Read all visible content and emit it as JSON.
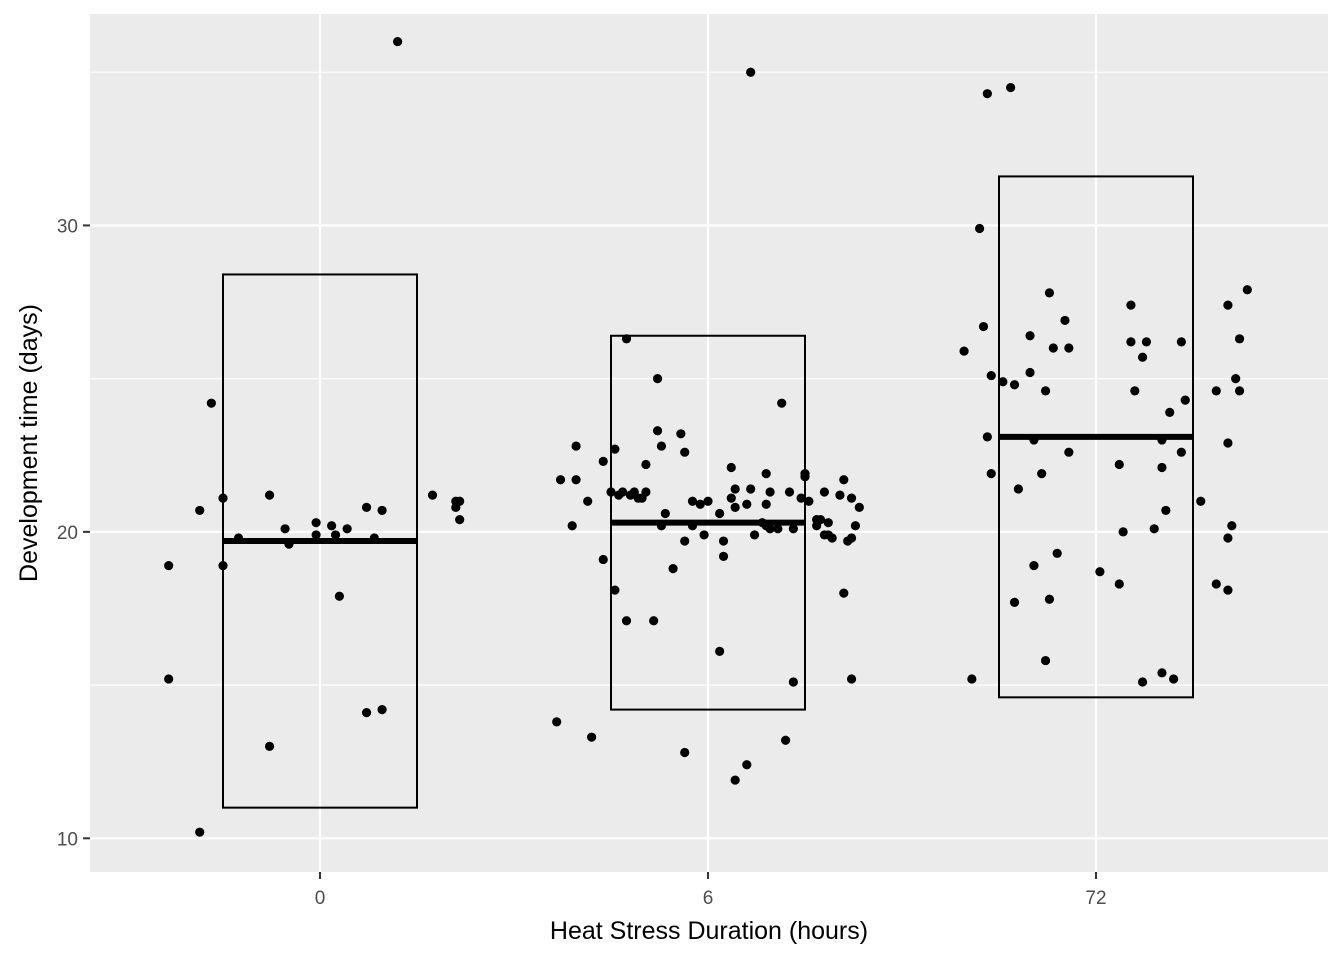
{
  "chart_data": {
    "type": "scatter",
    "subtype": "jittered strip plot with mean-and-range boxes",
    "title": "",
    "xlabel": "Heat Stress Duration (hours)",
    "ylabel": "Development time (days)",
    "categories": [
      "0",
      "6",
      "72"
    ],
    "ylim": [
      8.9,
      36.9
    ],
    "yticks": [
      10,
      20,
      30
    ],
    "grid": true,
    "legend": "none",
    "colors": {
      "panel": "#ebebeb",
      "grid": "#ffffff",
      "points": "#000000",
      "boxes": "#000000",
      "tick_text": "#4d4d4d"
    },
    "summary": [
      {
        "category": "0",
        "mean": 19.7,
        "low": 11.0,
        "high": 28.4
      },
      {
        "category": "6",
        "mean": 20.3,
        "low": 14.2,
        "high": 26.4
      },
      {
        "category": "72",
        "mean": 23.1,
        "low": 14.6,
        "high": 31.6
      }
    ],
    "points": [
      {
        "x": -0.39,
        "y": 18.9
      },
      {
        "x": -0.39,
        "y": 15.2
      },
      {
        "x": -0.31,
        "y": 10.2
      },
      {
        "x": -0.31,
        "y": 20.7
      },
      {
        "x": -0.28,
        "y": 24.2
      },
      {
        "x": -0.25,
        "y": 21.1
      },
      {
        "x": -0.25,
        "y": 18.9
      },
      {
        "x": -0.21,
        "y": 19.8
      },
      {
        "x": -0.13,
        "y": 21.2
      },
      {
        "x": -0.13,
        "y": 13.0
      },
      {
        "x": -0.09,
        "y": 20.1
      },
      {
        "x": -0.08,
        "y": 19.6
      },
      {
        "x": -0.01,
        "y": 19.9
      },
      {
        "x": -0.01,
        "y": 20.3
      },
      {
        "x": 0.03,
        "y": 20.2
      },
      {
        "x": 0.04,
        "y": 19.9
      },
      {
        "x": 0.05,
        "y": 17.9
      },
      {
        "x": 0.07,
        "y": 20.1
      },
      {
        "x": 0.12,
        "y": 20.8
      },
      {
        "x": 0.12,
        "y": 14.1
      },
      {
        "x": 0.14,
        "y": 19.8
      },
      {
        "x": 0.16,
        "y": 14.2
      },
      {
        "x": 0.16,
        "y": 20.7
      },
      {
        "x": 0.2,
        "y": 36.0
      },
      {
        "x": 0.29,
        "y": 21.2
      },
      {
        "x": 0.35,
        "y": 20.8
      },
      {
        "x": 0.35,
        "y": 21.0
      },
      {
        "x": 0.36,
        "y": 21.0
      },
      {
        "x": 0.36,
        "y": 20.4
      },
      {
        "x": 0.61,
        "y": 13.8
      },
      {
        "x": 0.62,
        "y": 21.7
      },
      {
        "x": 0.65,
        "y": 20.2
      },
      {
        "x": 0.66,
        "y": 22.8
      },
      {
        "x": 0.66,
        "y": 21.7
      },
      {
        "x": 0.69,
        "y": 21.0
      },
      {
        "x": 0.7,
        "y": 13.3
      },
      {
        "x": 0.73,
        "y": 22.3
      },
      {
        "x": 0.73,
        "y": 19.1
      },
      {
        "x": 0.75,
        "y": 21.3
      },
      {
        "x": 0.76,
        "y": 22.7
      },
      {
        "x": 0.76,
        "y": 18.1
      },
      {
        "x": 0.77,
        "y": 21.2
      },
      {
        "x": 0.78,
        "y": 21.3
      },
      {
        "x": 0.79,
        "y": 17.1
      },
      {
        "x": 0.79,
        "y": 26.3
      },
      {
        "x": 0.8,
        "y": 21.2
      },
      {
        "x": 0.81,
        "y": 21.3
      },
      {
        "x": 0.82,
        "y": 21.1
      },
      {
        "x": 0.83,
        "y": 21.1
      },
      {
        "x": 0.84,
        "y": 21.3
      },
      {
        "x": 0.84,
        "y": 22.2
      },
      {
        "x": 0.86,
        "y": 17.1
      },
      {
        "x": 0.87,
        "y": 23.3
      },
      {
        "x": 0.87,
        "y": 25.0
      },
      {
        "x": 0.88,
        "y": 20.2
      },
      {
        "x": 0.88,
        "y": 22.8
      },
      {
        "x": 0.89,
        "y": 20.6
      },
      {
        "x": 0.91,
        "y": 18.8
      },
      {
        "x": 0.93,
        "y": 23.2
      },
      {
        "x": 0.94,
        "y": 19.7
      },
      {
        "x": 0.94,
        "y": 12.8
      },
      {
        "x": 0.94,
        "y": 22.6
      },
      {
        "x": 0.96,
        "y": 20.2
      },
      {
        "x": 0.96,
        "y": 21.0
      },
      {
        "x": 0.98,
        "y": 20.9
      },
      {
        "x": 0.99,
        "y": 19.9
      },
      {
        "x": 1.0,
        "y": 21.0
      },
      {
        "x": 1.03,
        "y": 20.6
      },
      {
        "x": 1.03,
        "y": 16.1
      },
      {
        "x": 1.04,
        "y": 19.2
      },
      {
        "x": 1.04,
        "y": 19.7
      },
      {
        "x": 1.06,
        "y": 22.1
      },
      {
        "x": 1.06,
        "y": 21.1
      },
      {
        "x": 1.07,
        "y": 21.4
      },
      {
        "x": 1.07,
        "y": 20.8
      },
      {
        "x": 1.07,
        "y": 11.9
      },
      {
        "x": 1.1,
        "y": 12.4
      },
      {
        "x": 1.1,
        "y": 20.9
      },
      {
        "x": 1.11,
        "y": 21.4
      },
      {
        "x": 1.12,
        "y": 19.9
      },
      {
        "x": 1.14,
        "y": 20.3
      },
      {
        "x": 1.15,
        "y": 20.2
      },
      {
        "x": 1.15,
        "y": 21.9
      },
      {
        "x": 1.15,
        "y": 20.9
      },
      {
        "x": 1.16,
        "y": 21.3
      },
      {
        "x": 1.16,
        "y": 20.1
      },
      {
        "x": 1.18,
        "y": 20.1
      },
      {
        "x": 1.19,
        "y": 24.2
      },
      {
        "x": 1.2,
        "y": 13.2
      },
      {
        "x": 1.21,
        "y": 21.3
      },
      {
        "x": 1.22,
        "y": 20.1
      },
      {
        "x": 1.22,
        "y": 15.1
      },
      {
        "x": 1.24,
        "y": 21.1
      },
      {
        "x": 1.25,
        "y": 21.8
      },
      {
        "x": 1.25,
        "y": 21.9
      },
      {
        "x": 1.26,
        "y": 21.0
      },
      {
        "x": 1.28,
        "y": 20.4
      },
      {
        "x": 1.28,
        "y": 20.2
      },
      {
        "x": 1.29,
        "y": 20.4
      },
      {
        "x": 1.3,
        "y": 21.3
      },
      {
        "x": 1.3,
        "y": 19.9
      },
      {
        "x": 1.31,
        "y": 20.3
      },
      {
        "x": 1.31,
        "y": 19.9
      },
      {
        "x": 1.32,
        "y": 19.8
      },
      {
        "x": 1.34,
        "y": 21.2
      },
      {
        "x": 1.35,
        "y": 18.0
      },
      {
        "x": 1.35,
        "y": 21.7
      },
      {
        "x": 1.36,
        "y": 19.7
      },
      {
        "x": 1.37,
        "y": 19.8
      },
      {
        "x": 1.37,
        "y": 21.1
      },
      {
        "x": 1.37,
        "y": 15.2
      },
      {
        "x": 1.38,
        "y": 20.2
      },
      {
        "x": 1.39,
        "y": 20.8
      },
      {
        "x": 1.11,
        "y": 35.0
      },
      {
        "x": 1.66,
        "y": 25.9
      },
      {
        "x": 1.68,
        "y": 15.2
      },
      {
        "x": 1.7,
        "y": 29.9
      },
      {
        "x": 1.71,
        "y": 26.7
      },
      {
        "x": 1.72,
        "y": 23.1
      },
      {
        "x": 1.72,
        "y": 34.3
      },
      {
        "x": 1.73,
        "y": 25.1
      },
      {
        "x": 1.73,
        "y": 21.9
      },
      {
        "x": 1.76,
        "y": 24.9
      },
      {
        "x": 1.78,
        "y": 34.5
      },
      {
        "x": 1.79,
        "y": 17.7
      },
      {
        "x": 1.79,
        "y": 24.8
      },
      {
        "x": 1.8,
        "y": 21.4
      },
      {
        "x": 1.83,
        "y": 25.2
      },
      {
        "x": 1.83,
        "y": 26.4
      },
      {
        "x": 1.84,
        "y": 18.9
      },
      {
        "x": 1.84,
        "y": 23.0
      },
      {
        "x": 1.86,
        "y": 21.9
      },
      {
        "x": 1.87,
        "y": 15.8
      },
      {
        "x": 1.87,
        "y": 24.6
      },
      {
        "x": 1.88,
        "y": 17.8
      },
      {
        "x": 1.88,
        "y": 27.8
      },
      {
        "x": 1.89,
        "y": 26.0
      },
      {
        "x": 1.9,
        "y": 19.3
      },
      {
        "x": 1.92,
        "y": 26.9
      },
      {
        "x": 1.93,
        "y": 26.0
      },
      {
        "x": 1.93,
        "y": 22.6
      },
      {
        "x": 2.01,
        "y": 18.7
      },
      {
        "x": 2.06,
        "y": 18.3
      },
      {
        "x": 2.06,
        "y": 22.2
      },
      {
        "x": 2.07,
        "y": 20.0
      },
      {
        "x": 2.09,
        "y": 27.4
      },
      {
        "x": 2.09,
        "y": 26.2
      },
      {
        "x": 2.1,
        "y": 24.6
      },
      {
        "x": 2.12,
        "y": 15.1
      },
      {
        "x": 2.12,
        "y": 25.7
      },
      {
        "x": 2.13,
        "y": 26.2
      },
      {
        "x": 2.15,
        "y": 20.1
      },
      {
        "x": 2.17,
        "y": 15.4
      },
      {
        "x": 2.17,
        "y": 23.0
      },
      {
        "x": 2.17,
        "y": 22.1
      },
      {
        "x": 2.18,
        "y": 20.7
      },
      {
        "x": 2.19,
        "y": 23.9
      },
      {
        "x": 2.2,
        "y": 15.2
      },
      {
        "x": 2.22,
        "y": 22.6
      },
      {
        "x": 2.22,
        "y": 26.2
      },
      {
        "x": 2.23,
        "y": 24.3
      },
      {
        "x": 2.27,
        "y": 21.0
      },
      {
        "x": 2.31,
        "y": 24.6
      },
      {
        "x": 2.31,
        "y": 18.3
      },
      {
        "x": 2.34,
        "y": 27.4
      },
      {
        "x": 2.34,
        "y": 22.9
      },
      {
        "x": 2.34,
        "y": 19.8
      },
      {
        "x": 2.34,
        "y": 18.1
      },
      {
        "x": 2.35,
        "y": 20.2
      },
      {
        "x": 2.36,
        "y": 25.0
      },
      {
        "x": 2.37,
        "y": 26.3
      },
      {
        "x": 2.37,
        "y": 24.6
      },
      {
        "x": 2.39,
        "y": 27.9
      }
    ]
  }
}
